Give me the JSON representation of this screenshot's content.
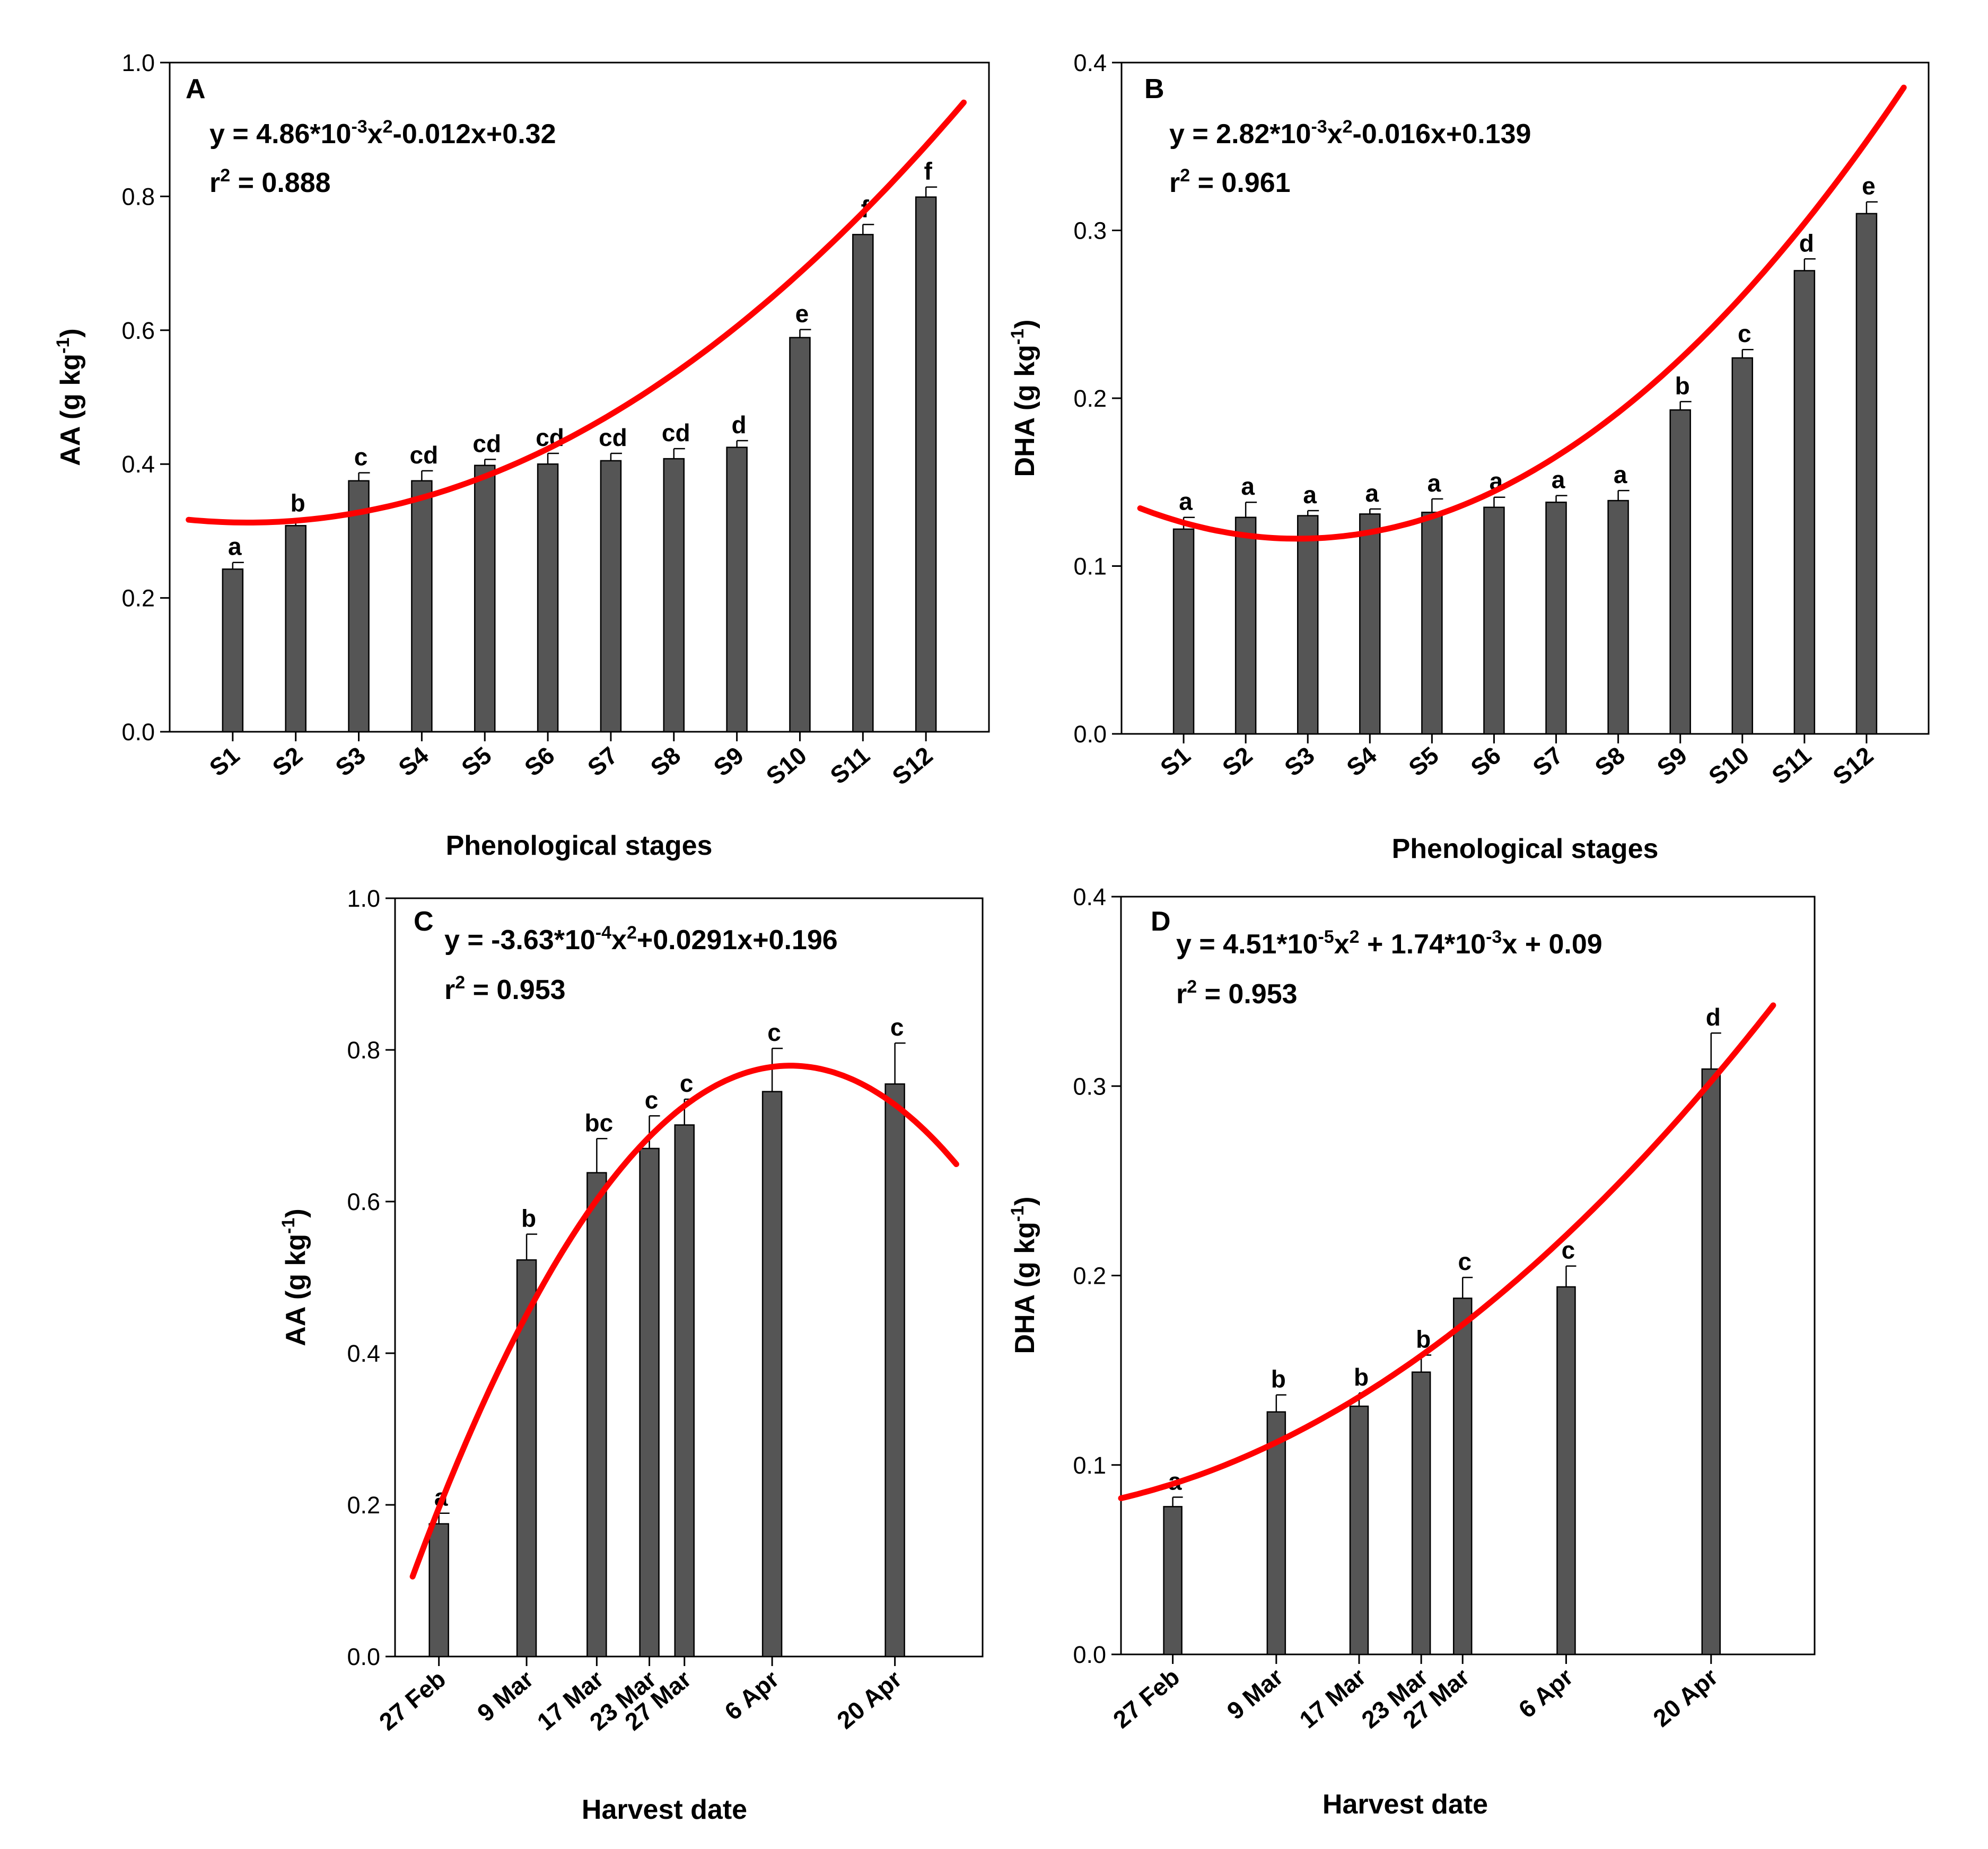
{
  "chart_data": [
    {
      "panel": "A",
      "type": "bar",
      "categories": [
        "S1",
        "S2",
        "S3",
        "S4",
        "S5",
        "S6",
        "S7",
        "S8",
        "S9",
        "S10",
        "S11",
        "S12"
      ],
      "x": [
        1,
        2,
        3,
        4,
        5,
        6,
        7,
        8,
        9,
        10,
        11,
        12
      ],
      "values": [
        0.243,
        0.308,
        0.375,
        0.375,
        0.398,
        0.4,
        0.405,
        0.408,
        0.425,
        0.589,
        0.743,
        0.799
      ],
      "errors": [
        0.01,
        0.01,
        0.012,
        0.015,
        0.009,
        0.016,
        0.011,
        0.015,
        0.01,
        0.012,
        0.015,
        0.015
      ],
      "letters": [
        "a",
        "b",
        "c",
        "cd",
        "cd",
        "cd",
        "cd",
        "cd",
        "d",
        "e",
        "f",
        "f"
      ],
      "xlabel": "Phenological stages",
      "ylabel": "AA (g kg-1)",
      "ylabel_main": "AA (g kg",
      "ylabel_sup": "-1",
      "ylabel_end": ")",
      "ylim": [
        0.0,
        1.0
      ],
      "yticks": [
        "0.0",
        "0.2",
        "0.4",
        "0.6",
        "0.8",
        "1.0"
      ],
      "xlim": [
        0,
        13
      ],
      "fit": {
        "a": 0.00486,
        "b": -0.012,
        "c": 0.32,
        "x_start": 0.3,
        "x_end": 12.6
      },
      "equation": {
        "pre": "y = 4.86*10",
        "sup1": "-3",
        "mid": "x",
        "sup2": "2",
        "post": "-0.012x+0.32"
      },
      "r2": {
        "pre": "r",
        "sup": "2",
        "post": " = 0.888"
      }
    },
    {
      "panel": "B",
      "type": "bar",
      "categories": [
        "S1",
        "S2",
        "S3",
        "S4",
        "S5",
        "S6",
        "S7",
        "S8",
        "S9",
        "S10",
        "S11",
        "S12"
      ],
      "x": [
        1,
        2,
        3,
        4,
        5,
        6,
        7,
        8,
        9,
        10,
        11,
        12
      ],
      "values": [
        0.122,
        0.129,
        0.13,
        0.131,
        0.132,
        0.135,
        0.138,
        0.139,
        0.193,
        0.224,
        0.276,
        0.31
      ],
      "errors": [
        0.007,
        0.009,
        0.003,
        0.003,
        0.008,
        0.006,
        0.004,
        0.006,
        0.005,
        0.005,
        0.007,
        0.007
      ],
      "letters": [
        "a",
        "a",
        "a",
        "a",
        "a",
        "a",
        "a",
        "a",
        "b",
        "c",
        "d",
        "e"
      ],
      "xlabel": "Phenological stages",
      "ylabel": "DHA (g kg-1)",
      "ylabel_main": "DHA (g kg",
      "ylabel_sup": "-1",
      "ylabel_end": ")",
      "ylim": [
        0.0,
        0.4
      ],
      "yticks": [
        "0.0",
        "0.1",
        "0.2",
        "0.3",
        "0.4"
      ],
      "xlim": [
        0,
        13
      ],
      "fit": {
        "a": 0.00282,
        "b": -0.016,
        "c": 0.139,
        "x_start": 0.3,
        "x_end": 12.6
      },
      "equation": {
        "pre": "y = 2.82*10",
        "sup1": "-3",
        "mid": "x",
        "sup2": "2",
        "post": "-0.016x+0.139"
      },
      "r2": {
        "pre": "r",
        "sup": "2",
        "post": " = 0.961"
      }
    },
    {
      "panel": "C",
      "type": "bar",
      "categories": [
        "27 Feb",
        "9 Mar",
        "17 Mar",
        "23 Mar",
        "27 Mar",
        "6 Apr",
        "20 Apr"
      ],
      "x": [
        0,
        10,
        18,
        24,
        28,
        38,
        52
      ],
      "values": [
        0.175,
        0.523,
        0.638,
        0.67,
        0.701,
        0.745,
        0.755
      ],
      "errors": [
        0.014,
        0.034,
        0.045,
        0.043,
        0.034,
        0.057,
        0.054
      ],
      "letters": [
        "a",
        "b",
        "bc",
        "c",
        "c",
        "c",
        "c"
      ],
      "xlabel": "Harvest date",
      "ylabel": "AA (g kg-1)",
      "ylabel_main": "AA (g kg",
      "ylabel_sup": "-1",
      "ylabel_end": ")",
      "ylim": [
        0.0,
        1.0
      ],
      "yticks": [
        "0.0",
        "0.2",
        "0.4",
        "0.6",
        "0.8",
        "1.0"
      ],
      "xlim": [
        -5,
        62
      ],
      "fit": {
        "a": -0.000363,
        "b": 0.0291,
        "c": 0.196,
        "x_start": -3,
        "x_end": 59
      },
      "equation": {
        "pre": "y = -3.63*10",
        "sup1": "-4",
        "mid": "x",
        "sup2": "2",
        "post": "+0.0291x+0.196"
      },
      "r2": {
        "pre": "r",
        "sup": "2",
        "post": " = 0.953"
      }
    },
    {
      "panel": "D",
      "type": "bar",
      "categories": [
        "27 Feb",
        "9 Mar",
        "17 Mar",
        "23 Mar",
        "27 Mar",
        "6 Apr",
        "20 Apr"
      ],
      "x": [
        0,
        10,
        18,
        24,
        28,
        38,
        52
      ],
      "values": [
        0.078,
        0.128,
        0.131,
        0.149,
        0.188,
        0.194,
        0.309
      ],
      "errors": [
        0.005,
        0.009,
        0.007,
        0.009,
        0.011,
        0.011,
        0.019
      ],
      "letters": [
        "a",
        "b",
        "b",
        "b",
        "c",
        "c",
        "d"
      ],
      "xlabel": "Harvest date",
      "ylabel": "DHA (g kg-1)",
      "ylabel_main": "DHA (g kg",
      "ylabel_sup": "-1",
      "ylabel_end": ")",
      "ylim": [
        0.0,
        0.4
      ],
      "yticks": [
        "0.0",
        "0.1",
        "0.2",
        "0.3",
        "0.4"
      ],
      "xlim": [
        -5,
        62
      ],
      "fit": {
        "a": 4.51e-05,
        "b": 0.00174,
        "c": 0.09,
        "x_start": -5,
        "x_end": 58
      },
      "equation": {
        "pre": "y = 4.51*10",
        "sup1": "-5",
        "mid": "x",
        "sup2": "2",
        "post": " + 1.74*10",
        "sup3": "-3",
        "post2": "x + 0.09"
      },
      "r2": {
        "pre": "r",
        "sup": "2",
        "post": " = 0.953"
      }
    }
  ],
  "colors": {
    "bar": "#555555",
    "fit": "#ff0000",
    "axis": "#000000"
  }
}
